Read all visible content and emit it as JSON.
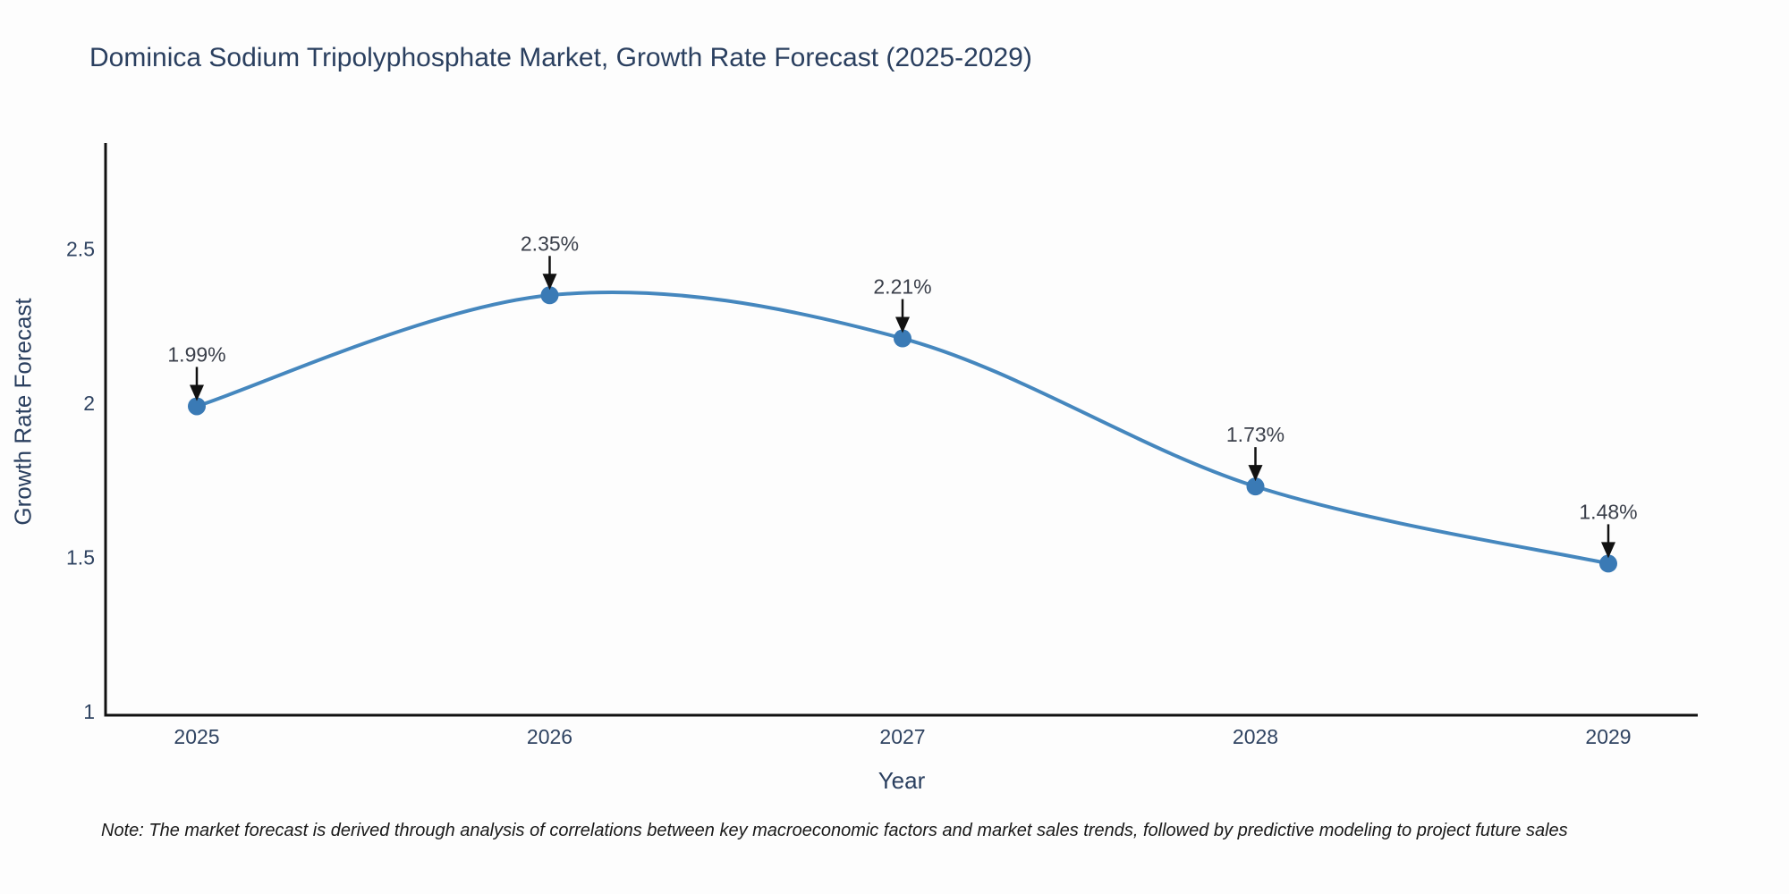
{
  "title": "Dominica Sodium Tripolyphosphate Market, Growth Rate Forecast (2025-2029)",
  "note": "Note: The market forecast is derived through analysis of correlations between key macroeconomic factors and market sales trends, followed by predictive modeling to project future sales",
  "chart_data": {
    "type": "line",
    "title": "Dominica Sodium Tripolyphosphate Market, Growth Rate Forecast (2025-2029)",
    "xlabel": "Year",
    "ylabel": "Growth Rate Forecast",
    "x": [
      2025,
      2026,
      2027,
      2028,
      2029
    ],
    "categories": [
      "2025",
      "2026",
      "2027",
      "2028",
      "2029"
    ],
    "values": [
      1.99,
      2.35,
      2.21,
      1.73,
      1.48
    ],
    "point_labels": [
      "1.99%",
      "2.35%",
      "2.21%",
      "1.73%",
      "1.48%"
    ],
    "yticks": [
      1,
      1.5,
      2,
      2.5
    ],
    "ytick_labels": [
      "1",
      "1.5",
      "2",
      "2.5"
    ],
    "ylim": [
      1.0,
      2.85
    ],
    "grid": false,
    "legend": "none",
    "line_shape": "spline",
    "annotation_style": "value-above-with-down-arrow",
    "colors": {
      "line": "#4587be",
      "marker": "#3a7ab5",
      "axis": "#111111",
      "arrow": "#111111",
      "title_text": "#2a3f5f",
      "tick_text": "#2f4361",
      "axis_label_text": "#2a3f5f",
      "annotation_text": "#3a3f4a",
      "note_text": "#1a1a1a",
      "background": "#fdfdfd"
    }
  }
}
